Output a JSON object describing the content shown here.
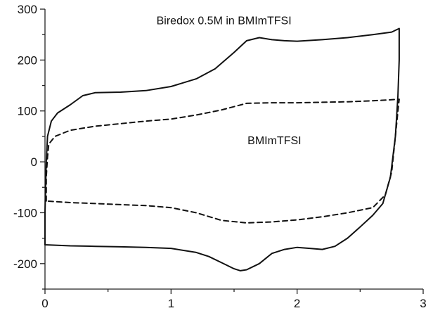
{
  "chart_data": {
    "type": "line",
    "title": "",
    "xlabel": "",
    "ylabel": "",
    "xlim": [
      0,
      3
    ],
    "ylim": [
      -250,
      300
    ],
    "grid": false,
    "legend": "none",
    "x_ticks": [
      0,
      1,
      2,
      3
    ],
    "y_ticks": [
      300,
      200,
      100,
      0,
      -100,
      -200
    ],
    "x_tick_labels": [
      "0",
      "1",
      "2",
      "3"
    ],
    "y_tick_labels": [
      "300",
      "200",
      "100",
      "0",
      "-100",
      "-200"
    ],
    "annotations": [
      {
        "text": "Biredox 0.5M in BMImTFSI",
        "x": 1.42,
        "y": 270
      },
      {
        "text": "BMImTFSI",
        "x": 1.82,
        "y": 35
      }
    ],
    "series": [
      {
        "style": "solid",
        "color": "#111111",
        "points": [
          [
            0.0,
            -163
          ],
          [
            0.0,
            -100
          ],
          [
            0.01,
            0
          ],
          [
            0.02,
            50
          ],
          [
            0.05,
            80
          ],
          [
            0.1,
            96
          ],
          [
            0.2,
            112
          ],
          [
            0.3,
            130
          ],
          [
            0.4,
            136
          ],
          [
            0.6,
            137
          ],
          [
            0.8,
            140
          ],
          [
            1.0,
            148
          ],
          [
            1.2,
            163
          ],
          [
            1.35,
            183
          ],
          [
            1.5,
            215
          ],
          [
            1.6,
            238
          ],
          [
            1.7,
            244
          ],
          [
            1.8,
            240
          ],
          [
            1.9,
            238
          ],
          [
            2.0,
            237
          ],
          [
            2.2,
            240
          ],
          [
            2.4,
            244
          ],
          [
            2.6,
            250
          ],
          [
            2.75,
            255
          ],
          [
            2.81,
            262
          ],
          [
            2.81,
            200
          ],
          [
            2.8,
            130
          ],
          [
            2.78,
            50
          ],
          [
            2.74,
            -30
          ],
          [
            2.68,
            -82
          ],
          [
            2.6,
            -105
          ],
          [
            2.5,
            -128
          ],
          [
            2.4,
            -150
          ],
          [
            2.3,
            -166
          ],
          [
            2.2,
            -172
          ],
          [
            2.1,
            -170
          ],
          [
            2.0,
            -168
          ],
          [
            1.9,
            -172
          ],
          [
            1.8,
            -180
          ],
          [
            1.7,
            -200
          ],
          [
            1.6,
            -212
          ],
          [
            1.55,
            -214
          ],
          [
            1.5,
            -210
          ],
          [
            1.4,
            -198
          ],
          [
            1.3,
            -186
          ],
          [
            1.2,
            -178
          ],
          [
            1.0,
            -170
          ],
          [
            0.8,
            -168
          ],
          [
            0.6,
            -167
          ],
          [
            0.4,
            -166
          ],
          [
            0.2,
            -165
          ],
          [
            0.0,
            -163
          ]
        ]
      },
      {
        "style": "dashed",
        "color": "#111111",
        "points": [
          [
            0.01,
            -77
          ],
          [
            0.01,
            -30
          ],
          [
            0.02,
            10
          ],
          [
            0.03,
            35
          ],
          [
            0.08,
            50
          ],
          [
            0.2,
            62
          ],
          [
            0.4,
            70
          ],
          [
            0.6,
            75
          ],
          [
            0.8,
            80
          ],
          [
            1.0,
            84
          ],
          [
            1.2,
            92
          ],
          [
            1.4,
            102
          ],
          [
            1.6,
            115
          ],
          [
            1.8,
            116
          ],
          [
            2.0,
            116
          ],
          [
            2.2,
            117
          ],
          [
            2.4,
            118
          ],
          [
            2.6,
            120
          ],
          [
            2.75,
            122
          ],
          [
            2.81,
            123
          ],
          [
            2.8,
            100
          ],
          [
            2.78,
            50
          ],
          [
            2.75,
            -20
          ],
          [
            2.7,
            -65
          ],
          [
            2.6,
            -90
          ],
          [
            2.4,
            -100
          ],
          [
            2.2,
            -108
          ],
          [
            2.0,
            -114
          ],
          [
            1.8,
            -118
          ],
          [
            1.6,
            -120
          ],
          [
            1.4,
            -115
          ],
          [
            1.2,
            -100
          ],
          [
            1.0,
            -90
          ],
          [
            0.8,
            -86
          ],
          [
            0.6,
            -84
          ],
          [
            0.4,
            -82
          ],
          [
            0.2,
            -80
          ],
          [
            0.01,
            -77
          ]
        ]
      }
    ]
  }
}
